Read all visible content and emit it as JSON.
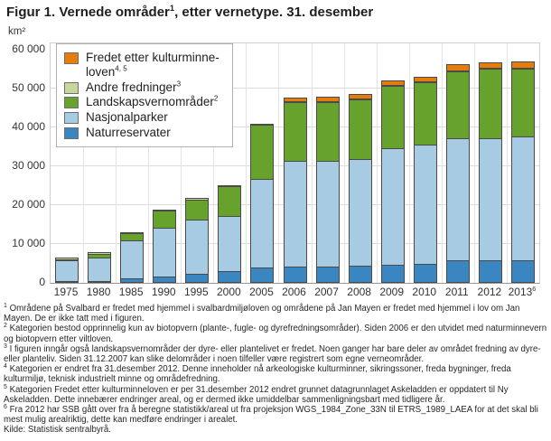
{
  "title": {
    "pre": "Figur 1. Vernede områder",
    "sup": "1",
    "post": ", etter vernetype. 31. desember"
  },
  "y_axis": {
    "unit": "km²",
    "ticks": [
      {
        "value": 0,
        "label": "0"
      },
      {
        "value": 10000,
        "label": "10 000"
      },
      {
        "value": 20000,
        "label": "20 000"
      },
      {
        "value": 30000,
        "label": "30 000"
      },
      {
        "value": 40000,
        "label": "40 000"
      },
      {
        "value": 50000,
        "label": "50 000"
      },
      {
        "value": 60000,
        "label": "60 000"
      }
    ]
  },
  "legend": {
    "items": [
      {
        "key": "kulturminne",
        "lines": [
          "Fredet etter kulturminne-",
          "loven"
        ],
        "sup": "4, 5",
        "color": "#e57c0c"
      },
      {
        "key": "andre-fredninger",
        "lines": [
          "Andre fredninger"
        ],
        "sup": "3",
        "color": "#c6d79c"
      },
      {
        "key": "landskapsvernomrader",
        "lines": [
          "Landskapsvernområder"
        ],
        "sup": "2",
        "color": "#67a32c"
      },
      {
        "key": "nasjonalparker",
        "lines": [
          "Nasjonalparker"
        ],
        "sup": "",
        "color": "#a8cbe4"
      },
      {
        "key": "naturreservater",
        "lines": [
          "Naturreservater"
        ],
        "sup": "",
        "color": "#3a86c1"
      }
    ]
  },
  "chart_data": {
    "type": "bar",
    "stacked": true,
    "unit": "km²",
    "title": "Figur 1. Vernede områder, etter vernetype. 31. desember",
    "ylabel": "km²",
    "xlabel": "",
    "ylim": [
      0,
      60000
    ],
    "ytick_step": 10000,
    "grid": "horizontal and vertical, light gray",
    "legend_position": "overlay top-left",
    "categories": [
      "1975",
      "1980",
      "1985",
      "1990",
      "1995",
      "2000",
      "2005",
      "2006",
      "2007",
      "2008",
      "2009",
      "2010",
      "2011",
      "2012",
      "2013"
    ],
    "category_sup": {
      "2013": "6"
    },
    "series": [
      {
        "key": "naturreservater",
        "name": "Naturreservater",
        "color": "#3a86c1",
        "values": [
          200,
          300,
          900,
          1400,
          2200,
          2900,
          3700,
          3900,
          4000,
          4300,
          4500,
          4700,
          5500,
          5500,
          5700
        ]
      },
      {
        "key": "nasjonalparker",
        "name": "Nasjonalparker",
        "color": "#a8cbe4",
        "values": [
          5400,
          6100,
          9800,
          12600,
          13900,
          14000,
          22700,
          27300,
          27100,
          27300,
          29900,
          30600,
          31500,
          31500,
          31800
        ]
      },
      {
        "key": "landskapsvernomrader",
        "name": "Landskapsvernområder",
        "color": "#67a32c",
        "values": [
          200,
          900,
          1800,
          4300,
          5100,
          7700,
          14000,
          15100,
          15200,
          15300,
          16000,
          16000,
          17300,
          17800,
          17400
        ]
      },
      {
        "key": "andre-fredninger",
        "name": "Andre fredninger",
        "color": "#c6d79c",
        "values": [
          100,
          100,
          100,
          100,
          100,
          100,
          100,
          100,
          100,
          100,
          100,
          100,
          100,
          100,
          100
        ]
      },
      {
        "key": "kulturminne",
        "name": "Fredet etter kulturminneloven",
        "color": "#e57c0c",
        "values": [
          0,
          0,
          0,
          0,
          0,
          0,
          0,
          800,
          900,
          1100,
          1100,
          1100,
          1200,
          1200,
          1300
        ]
      }
    ]
  },
  "footnotes": [
    {
      "marker": "1",
      "text": "Områdene på Svalbard er fredet med hjemmel i svalbardmiljøloven og områdene på Jan Mayen er fredet med hjemmel i lov om Jan Mayen. De er ikke tatt med i figuren."
    },
    {
      "marker": "2",
      "text": "Kategorien bestod opprinnelig kun av biotopvern (plante-, fugle- og dyrefredningsområder). Siden 2006 er den utvidet med naturminnevern og biotopvern etter viltloven."
    },
    {
      "marker": "3",
      "text": "I figuren inngår også landskapsvernområder der dyre- eller plantelivet er fredet. Noen ganger har bare deler av området fredning av dyre- eller planteliv. Siden 31.12.2007 kan slike delområder i noen tilfeller være registrert som egne verneområder."
    },
    {
      "marker": "4",
      "text": "Kategorien er endret fra 31.desember 2012. Denne inneholder nå arkeologiske kulturminner, sikringssoner, freda bygninger, freda kulturmiljø, teknisk industrielt minne og områdefredning."
    },
    {
      "marker": "5",
      "text": "Kategorien Fredet etter kulturminneloven er per 31.desember 2012 endret grunnet datagrunnlaget Askeladden er oppdatert til Ny Askeladden. Dette innebærer endringer areal, og er dermed ikke umiddelbar sammenligningsbart med tidligere år."
    },
    {
      "marker": "6",
      "text": "Fra 2012 har SSB gått over fra å beregne statistikk/areal ut fra projeksjon WGS_1984_Zone_33N til ETRS_1989_LAEA for at det skal bli mest mulig arealriktig, dette kan medføre endringer i arealet."
    }
  ],
  "source": "Kilde: Statistisk sentralbyrå."
}
